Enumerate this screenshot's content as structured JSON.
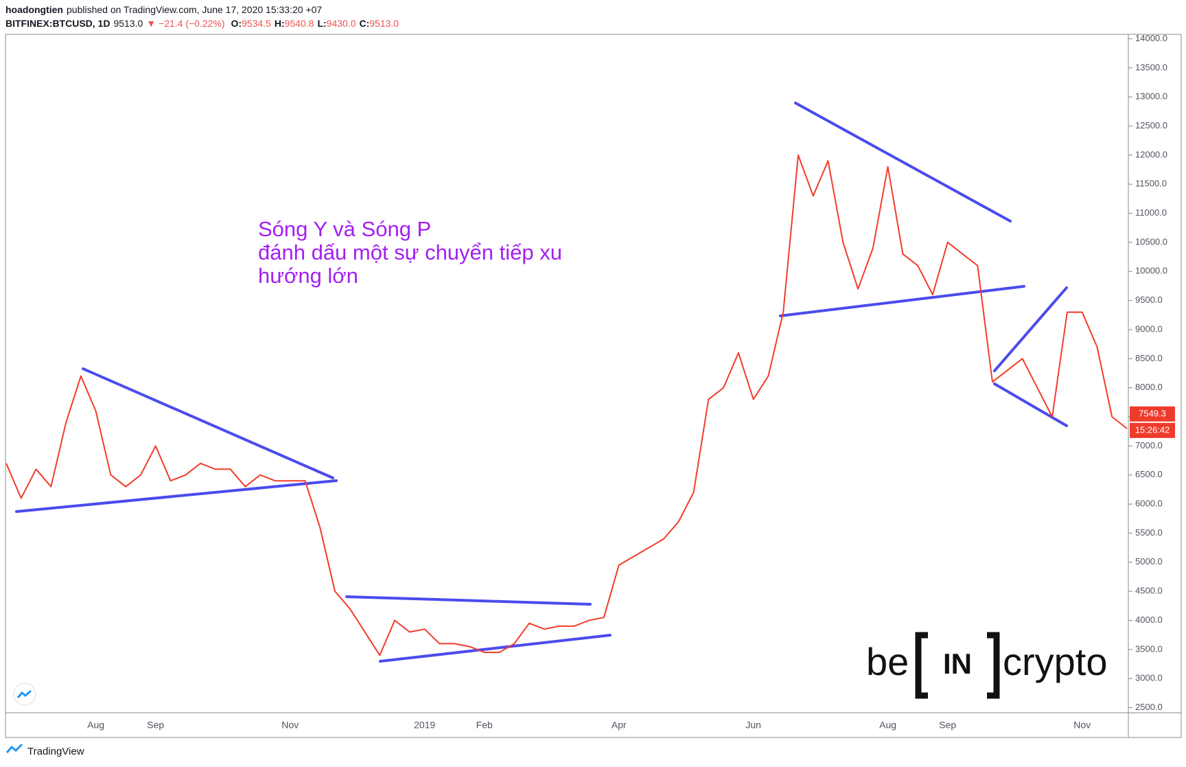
{
  "header": {
    "author": "hoadongtien",
    "published": "published on TradingView.com, June 17, 2020 15:33:20 +07",
    "symbol": "BITFINEX:BTCUSD, 1D",
    "price": "9513.0",
    "change": "▼ −21.4 (−0.22%)",
    "ohlc": [
      {
        "key": "O:",
        "value": "9534.5"
      },
      {
        "key": "H:",
        "value": "9540.8"
      },
      {
        "key": "L:",
        "value": "9430.0"
      },
      {
        "key": "C:",
        "value": "9513.0"
      }
    ]
  },
  "chart_data": {
    "type": "line",
    "color": "#f23b2a",
    "categories": [
      null,
      null,
      null,
      null,
      null,
      null,
      "Aug",
      null,
      null,
      null,
      "Sep",
      null,
      null,
      null,
      null,
      null,
      null,
      null,
      null,
      "Nov",
      null,
      null,
      null,
      null,
      null,
      null,
      null,
      null,
      "2019",
      null,
      null,
      null,
      "Feb",
      null,
      null,
      null,
      null,
      null,
      null,
      null,
      null,
      "Apr",
      null,
      null,
      null,
      null,
      null,
      null,
      null,
      null,
      "Jun",
      null,
      null,
      null,
      null,
      null,
      null,
      null,
      null,
      "Aug",
      null,
      null,
      null,
      "Sep",
      null,
      null,
      null,
      null,
      null,
      null,
      null,
      null,
      "Nov",
      null,
      null,
      null
    ],
    "values": [
      6700,
      6100,
      6600,
      6300,
      7400,
      8200,
      7600,
      6500,
      6300,
      6500,
      7000,
      6400,
      6500,
      6700,
      6600,
      6600,
      6300,
      6500,
      6400,
      6400,
      6400,
      5600,
      4500,
      4200,
      3800,
      3400,
      4000,
      3800,
      3850,
      3600,
      3600,
      3550,
      3450,
      3450,
      3600,
      3950,
      3850,
      3900,
      3900,
      4000,
      4050,
      4950,
      5100,
      5250,
      5400,
      5700,
      6200,
      7800,
      8000,
      8600,
      7800,
      8200,
      9300,
      12000,
      11300,
      11900,
      10500,
      9700,
      10400,
      11800,
      10300,
      10100,
      9600,
      10500,
      10300,
      10100,
      8100,
      8300,
      8500,
      8000,
      7500,
      9300,
      9300,
      8700,
      7500,
      7300
    ],
    "ylim": [
      2400,
      14100
    ],
    "yticks": [
      {
        "value": 2500,
        "label": "2500.0"
      },
      {
        "value": 3000,
        "label": "3000.0"
      },
      {
        "value": 3500,
        "label": "3500.0"
      },
      {
        "value": 4000,
        "label": "4000.0"
      },
      {
        "value": 4500,
        "label": "4500.0"
      },
      {
        "value": 5000,
        "label": "5000.0"
      },
      {
        "value": 5500,
        "label": "5500.0"
      },
      {
        "value": 6000,
        "label": "6000.0"
      },
      {
        "value": 6500,
        "label": "6500.0"
      },
      {
        "value": 7000,
        "label": "7000.0"
      },
      {
        "value": 7500,
        "label": "7500.0"
      },
      {
        "value": 8000,
        "label": "8000.0"
      },
      {
        "value": 8500,
        "label": "8500.0"
      },
      {
        "value": 9000,
        "label": "9000.0"
      },
      {
        "value": 9500,
        "label": "9500.0"
      },
      {
        "value": 10000,
        "label": "10000.0"
      },
      {
        "value": 10500,
        "label": "10500.0"
      },
      {
        "value": 11000,
        "label": "11000.0"
      },
      {
        "value": 11500,
        "label": "11500.0"
      },
      {
        "value": 12000,
        "label": "12000.0"
      },
      {
        "value": 12500,
        "label": "12500.0"
      },
      {
        "value": 13000,
        "label": "13000.0"
      },
      {
        "value": 13500,
        "label": "13500.0"
      },
      {
        "value": 14000,
        "label": "14000.0"
      }
    ],
    "grid": false,
    "last_price": 7549.3,
    "countdown": "15:26:42",
    "annotation": [
      "Sóng Y và Sóng P",
      "đánh dấu một sự chuyển tiếp xu",
      "hướng lớn"
    ]
  },
  "logo": {
    "left": "be",
    "mark": "IN",
    "right": "crypto"
  },
  "footer": "TradingView"
}
